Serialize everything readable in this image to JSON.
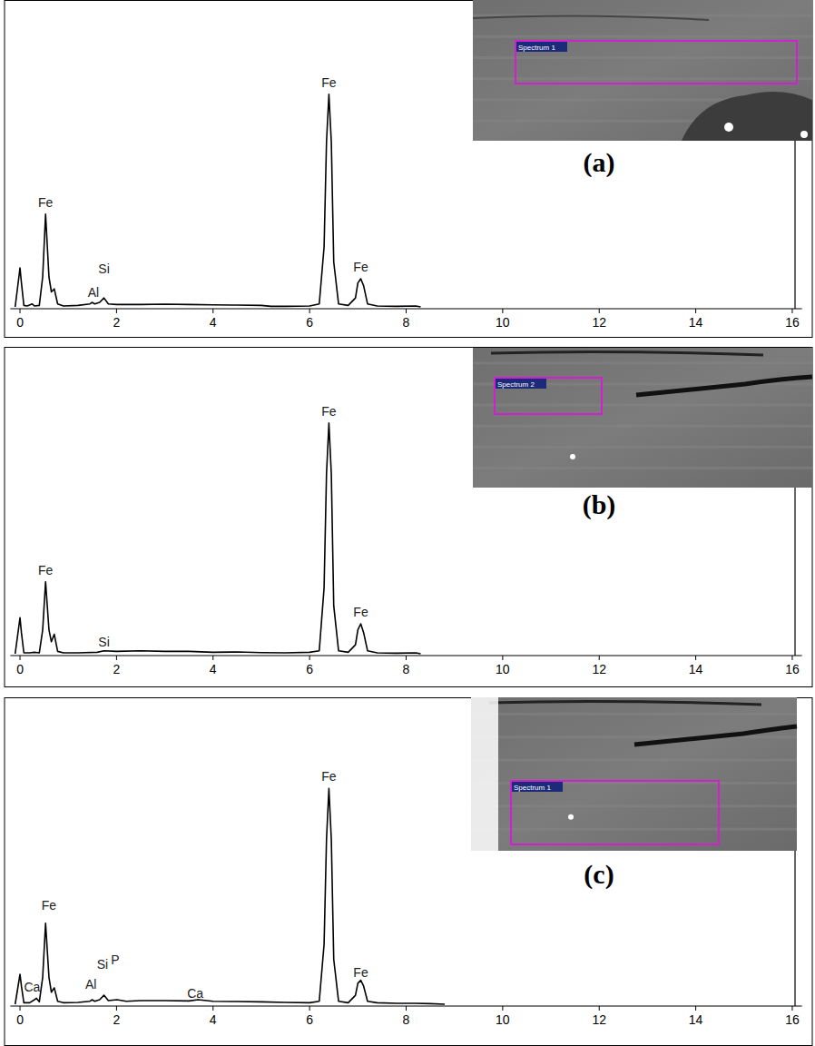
{
  "chart_data": [
    {
      "type": "line",
      "panel_label": "(a)",
      "inset_label": "Spectrum 1",
      "color": "#000000",
      "xlim": [
        -0.2,
        16.2
      ],
      "ylim": [
        0,
        100
      ],
      "xticks": [
        0,
        2,
        4,
        6,
        8,
        10,
        12,
        14,
        16
      ],
      "tick_labels": "x",
      "x": [
        -0.1,
        0,
        0.03,
        0.08,
        0.15,
        0.25,
        0.3,
        0.4,
        0.47,
        0.53,
        0.6,
        0.65,
        0.71,
        0.78,
        0.9,
        1.2,
        1.45,
        1.49,
        1.55,
        1.65,
        1.74,
        1.83,
        2.0,
        2.5,
        3.0,
        3.5,
        4.0,
        4.5,
        5.0,
        5.2,
        5.5,
        6.0,
        6.2,
        6.3,
        6.35,
        6.4,
        6.45,
        6.5,
        6.6,
        6.8,
        6.95,
        7.0,
        7.06,
        7.12,
        7.2,
        7.4,
        7.8,
        8.2,
        8.3
      ],
      "values": [
        0,
        13,
        8,
        0.5,
        0.3,
        1,
        0.3,
        0.5,
        10,
        31,
        10,
        5,
        6,
        1,
        0.3,
        0.5,
        1,
        1.5,
        1,
        1.5,
        3,
        1,
        0.8,
        0.8,
        0.9,
        0.8,
        0.7,
        0.6,
        0.5,
        0.2,
        0.2,
        0.3,
        1,
        20,
        55,
        71,
        55,
        15,
        1,
        0.5,
        3,
        8,
        9.4,
        7,
        1,
        0.3,
        0.2,
        0.3,
        0
      ],
      "annotations": [
        {
          "text": "Fe",
          "x": 0.53,
          "y": 35
        },
        {
          "text": "Al",
          "x": 1.52,
          "y": 4.8
        },
        {
          "text": "Si",
          "x": 1.74,
          "y": 12.7
        },
        {
          "text": "Fe",
          "x": 6.4,
          "y": 75
        },
        {
          "text": "Fe",
          "x": 7.06,
          "y": 13.3
        }
      ]
    },
    {
      "type": "line",
      "panel_label": "(b)",
      "inset_label": "Spectrum 2",
      "color": "#000000",
      "xlim": [
        -0.2,
        16.2
      ],
      "ylim": [
        0,
        100
      ],
      "xticks": [
        0,
        2,
        4,
        6,
        8,
        10,
        12,
        14,
        16
      ],
      "tick_labels": "x",
      "x": [
        -0.1,
        0,
        0.03,
        0.08,
        0.2,
        0.3,
        0.4,
        0.47,
        0.53,
        0.6,
        0.65,
        0.71,
        0.78,
        0.9,
        1.2,
        1.6,
        1.74,
        2.0,
        2.5,
        3.0,
        3.5,
        4.0,
        4.5,
        5.0,
        5.5,
        6.0,
        6.2,
        6.3,
        6.35,
        6.4,
        6.45,
        6.5,
        6.6,
        6.8,
        6.95,
        7.0,
        7.06,
        7.12,
        7.2,
        7.4,
        7.8,
        8.2,
        8.3
      ],
      "values": [
        0,
        12,
        7,
        0.3,
        0.3,
        0.5,
        0.3,
        8,
        24,
        8,
        4,
        6.5,
        0.8,
        0.3,
        0.3,
        0.5,
        1,
        0.8,
        1,
        0.8,
        0.8,
        0.5,
        0.6,
        0.4,
        0.3,
        0.5,
        1,
        22,
        60,
        77,
        60,
        16,
        1,
        0.5,
        3,
        8,
        10,
        7,
        1,
        0.3,
        0.2,
        0.3,
        0
      ],
      "annotations": [
        {
          "text": "Fe",
          "x": 0.53,
          "y": 28
        },
        {
          "text": "Si",
          "x": 1.74,
          "y": 4
        },
        {
          "text": "Fe",
          "x": 6.4,
          "y": 81
        },
        {
          "text": "Fe",
          "x": 7.06,
          "y": 14
        }
      ]
    },
    {
      "type": "line",
      "panel_label": "(c)",
      "inset_label": "Spectrum 1",
      "color": "#000000",
      "xlim": [
        -0.2,
        16.2
      ],
      "ylim": [
        0,
        100
      ],
      "xticks": [
        0,
        2,
        4,
        6,
        8,
        10,
        12,
        14,
        16
      ],
      "tick_labels": "x",
      "x": [
        -0.1,
        0,
        0.03,
        0.08,
        0.2,
        0.3,
        0.34,
        0.4,
        0.47,
        0.53,
        0.6,
        0.65,
        0.71,
        0.78,
        0.9,
        1.2,
        1.45,
        1.49,
        1.55,
        1.65,
        1.74,
        1.83,
        2.01,
        2.2,
        2.5,
        3.0,
        3.5,
        3.69,
        4.0,
        4.5,
        5.0,
        5.5,
        6.0,
        6.2,
        6.3,
        6.35,
        6.4,
        6.45,
        6.5,
        6.6,
        6.8,
        6.95,
        7.0,
        7.06,
        7.12,
        7.2,
        7.4,
        7.8,
        8.2,
        8.5,
        8.8
      ],
      "values": [
        0,
        10,
        6,
        0.5,
        0.5,
        1.5,
        2,
        0.8,
        9,
        27,
        9,
        4,
        5.5,
        1,
        0.5,
        0.6,
        1,
        1.5,
        1,
        1.5,
        3,
        1.2,
        1.5,
        1,
        1.2,
        1.2,
        1.1,
        1.5,
        1,
        0.9,
        0.8,
        0.6,
        0.5,
        1,
        20,
        55,
        72,
        55,
        15,
        1,
        0.5,
        3,
        7,
        8,
        6,
        1,
        0.5,
        0.3,
        0.3,
        0.2,
        0
      ],
      "annotations": [
        {
          "text": "Ca",
          "x": 0.25,
          "y": 5.8
        },
        {
          "text": "Fe",
          "x": 0.6,
          "y": 33
        },
        {
          "text": "Al",
          "x": 1.47,
          "y": 6.7
        },
        {
          "text": "Si",
          "x": 1.71,
          "y": 13.3
        },
        {
          "text": "P",
          "x": 1.97,
          "y": 15
        },
        {
          "text": "Ca",
          "x": 3.63,
          "y": 3.5
        },
        {
          "text": "Fe",
          "x": 6.4,
          "y": 76
        },
        {
          "text": "Fe",
          "x": 7.06,
          "y": 10.6
        }
      ]
    }
  ]
}
